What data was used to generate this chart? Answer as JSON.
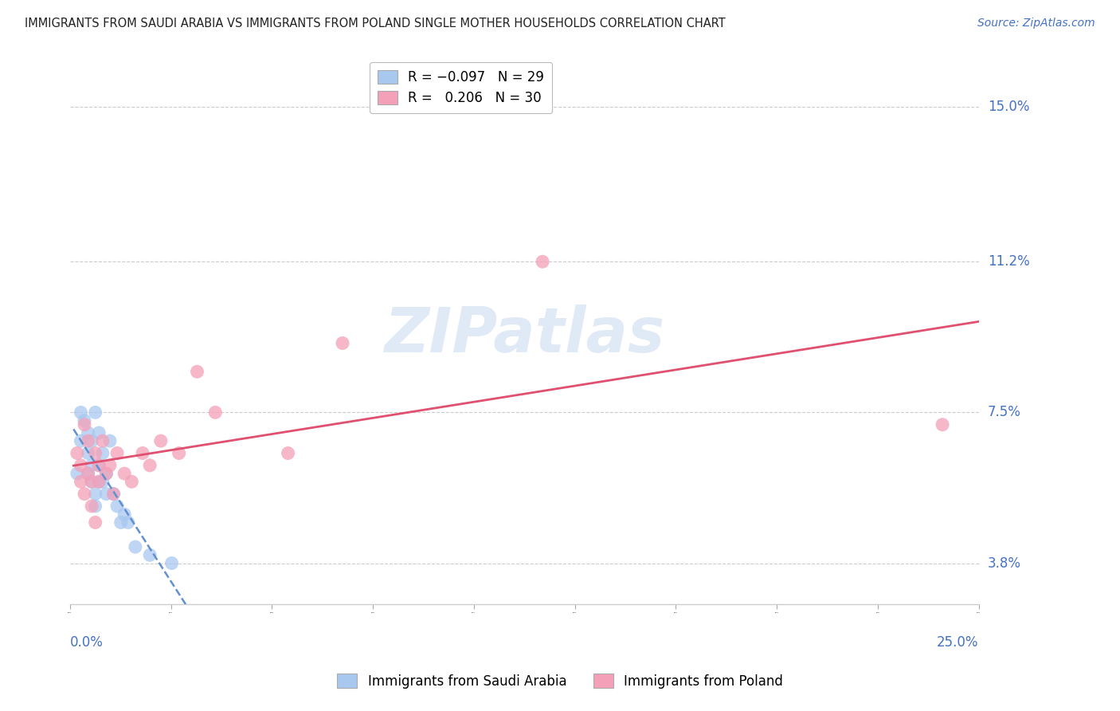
{
  "title": "IMMIGRANTS FROM SAUDI ARABIA VS IMMIGRANTS FROM POLAND SINGLE MOTHER HOUSEHOLDS CORRELATION CHART",
  "source": "Source: ZipAtlas.com",
  "ylabel": "Single Mother Households",
  "xlim": [
    0.0,
    0.25
  ],
  "ylim": [
    0.028,
    0.16
  ],
  "yticks": [
    0.038,
    0.075,
    0.112,
    0.15
  ],
  "ytick_labels": [
    "3.8%",
    "7.5%",
    "11.2%",
    "15.0%"
  ],
  "xtick_labels": [
    "0.0%",
    "25.0%"
  ],
  "color_saudi": "#A8C8F0",
  "color_poland": "#F4A0B8",
  "line_color_saudi": "#6090D0",
  "line_color_poland": "#E05070",
  "background_color": "#ffffff",
  "saudi_x": [
    0.002,
    0.003,
    0.003,
    0.004,
    0.005,
    0.005,
    0.005,
    0.006,
    0.006,
    0.006,
    0.007,
    0.007,
    0.007,
    0.008,
    0.008,
    0.008,
    0.009,
    0.009,
    0.01,
    0.01,
    0.011,
    0.012,
    0.013,
    0.014,
    0.015,
    0.016,
    0.018,
    0.022,
    0.028
  ],
  "saudi_y": [
    0.06,
    0.075,
    0.068,
    0.073,
    0.065,
    0.07,
    0.06,
    0.068,
    0.062,
    0.058,
    0.075,
    0.055,
    0.052,
    0.07,
    0.062,
    0.058,
    0.065,
    0.058,
    0.06,
    0.055,
    0.068,
    0.055,
    0.052,
    0.048,
    0.05,
    0.048,
    0.042,
    0.04,
    0.038
  ],
  "poland_x": [
    0.002,
    0.003,
    0.003,
    0.004,
    0.004,
    0.005,
    0.005,
    0.006,
    0.006,
    0.007,
    0.007,
    0.008,
    0.008,
    0.009,
    0.01,
    0.011,
    0.012,
    0.013,
    0.015,
    0.017,
    0.02,
    0.022,
    0.025,
    0.03,
    0.035,
    0.04,
    0.06,
    0.075,
    0.13,
    0.24
  ],
  "poland_y": [
    0.065,
    0.062,
    0.058,
    0.072,
    0.055,
    0.06,
    0.068,
    0.058,
    0.052,
    0.065,
    0.048,
    0.062,
    0.058,
    0.068,
    0.06,
    0.062,
    0.055,
    0.065,
    0.06,
    0.058,
    0.065,
    0.062,
    0.068,
    0.065,
    0.085,
    0.075,
    0.065,
    0.092,
    0.112,
    0.072
  ]
}
